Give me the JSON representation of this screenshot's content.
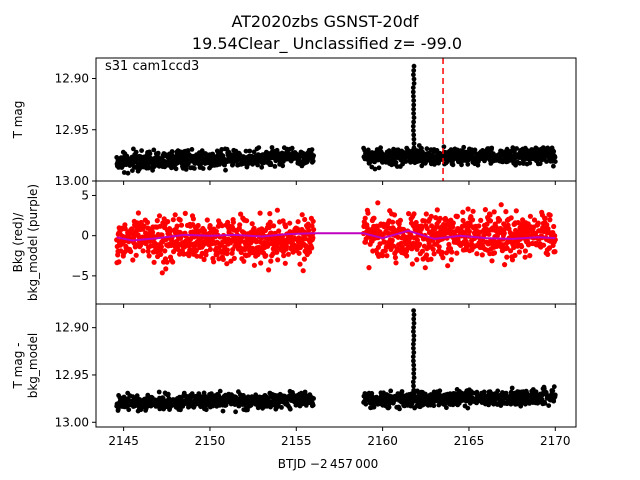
{
  "chart_data": {
    "type": "scatter",
    "title_line1": "AT2020zbs  GSNST-20df",
    "title_line2": "19.54Clear_ Unclassified z= -99.0",
    "annotation": "s31 cam1ccd3",
    "xlabel": "BTJD −2 457 000",
    "xlim": [
      2143.4,
      2171.2
    ],
    "xticks": [
      2145,
      2150,
      2155,
      2160,
      2165,
      2170
    ],
    "xtick_labels": [
      "2145",
      "2150",
      "2155",
      "2160",
      "2165",
      "2170"
    ],
    "vline_x": 2163.5,
    "vline_color": "#ff0000",
    "panels": [
      {
        "id": "top",
        "ylabel": [
          "T mag"
        ],
        "ylim": [
          12.88,
          13.0
        ],
        "inverted": true,
        "yticks": [
          12.9,
          12.95,
          13.0
        ],
        "ytick_labels": [
          "12.90",
          "12.95",
          "13.00"
        ],
        "series": [
          {
            "color": "#000000",
            "segments": [
              {
                "x_start": 2144.6,
                "x_end": 2156.0,
                "y_start": 12.981,
                "y_end": 12.976,
                "scatter": 0.004
              },
              {
                "x_start": 2158.9,
                "x_end": 2170.0,
                "y_start": 12.977,
                "y_end": 12.975,
                "scatter": 0.004
              }
            ],
            "flare": {
              "x": 2161.8,
              "peak": 12.888,
              "width": 0.05
            }
          }
        ]
      },
      {
        "id": "middle",
        "ylabel": [
          "Bkg (red)/",
          "bkg_model (purple)"
        ],
        "ylim": [
          -8.5,
          6.8
        ],
        "inverted": false,
        "yticks": [
          5,
          0,
          -5
        ],
        "ytick_labels": [
          "5",
          "0",
          "−5"
        ],
        "series": [
          {
            "name": "Bkg",
            "color": "#ff0000",
            "segments": [
              {
                "x_start": 2144.6,
                "x_end": 2156.0,
                "y_start": -0.5,
                "y_end": -0.5,
                "scatter": 1.4
              },
              {
                "x_start": 2158.9,
                "x_end": 2170.0,
                "y_start": 0.0,
                "y_end": 0.0,
                "scatter": 1.4
              }
            ]
          },
          {
            "name": "bkg_model",
            "color": "#bf00bf",
            "line": [
              [
                2144.6,
                -0.2
              ],
              [
                2145.5,
                -0.6
              ],
              [
                2147.0,
                -0.3
              ],
              [
                2148.5,
                0.1
              ],
              [
                2150.0,
                0.0
              ],
              [
                2151.5,
                0.1
              ],
              [
                2153.0,
                -0.1
              ],
              [
                2154.5,
                0.2
              ],
              [
                2156.0,
                0.3
              ],
              [
                2158.9,
                0.3
              ],
              [
                2160.0,
                -0.3
              ],
              [
                2161.5,
                0.6
              ],
              [
                2163.0,
                -0.4
              ],
              [
                2164.5,
                0.0
              ],
              [
                2166.0,
                -0.3
              ],
              [
                2167.5,
                -0.4
              ],
              [
                2169.0,
                -0.2
              ],
              [
                2170.0,
                -0.3
              ]
            ]
          }
        ]
      },
      {
        "id": "bottom",
        "ylabel": [
          "T mag -",
          "bkg_model"
        ],
        "ylim": [
          12.875,
          13.005
        ],
        "inverted": true,
        "yticks": [
          12.9,
          12.95,
          13.0
        ],
        "ytick_labels": [
          "12.90",
          "12.95",
          "13.00"
        ],
        "series": [
          {
            "color": "#000000",
            "segments": [
              {
                "x_start": 2144.6,
                "x_end": 2156.0,
                "y_start": 12.98,
                "y_end": 12.976,
                "scatter": 0.004
              },
              {
                "x_start": 2158.9,
                "x_end": 2170.0,
                "y_start": 12.977,
                "y_end": 12.973,
                "scatter": 0.004
              }
            ],
            "flare": {
              "x": 2161.8,
              "peak": 12.882,
              "width": 0.05
            }
          }
        ]
      }
    ]
  }
}
